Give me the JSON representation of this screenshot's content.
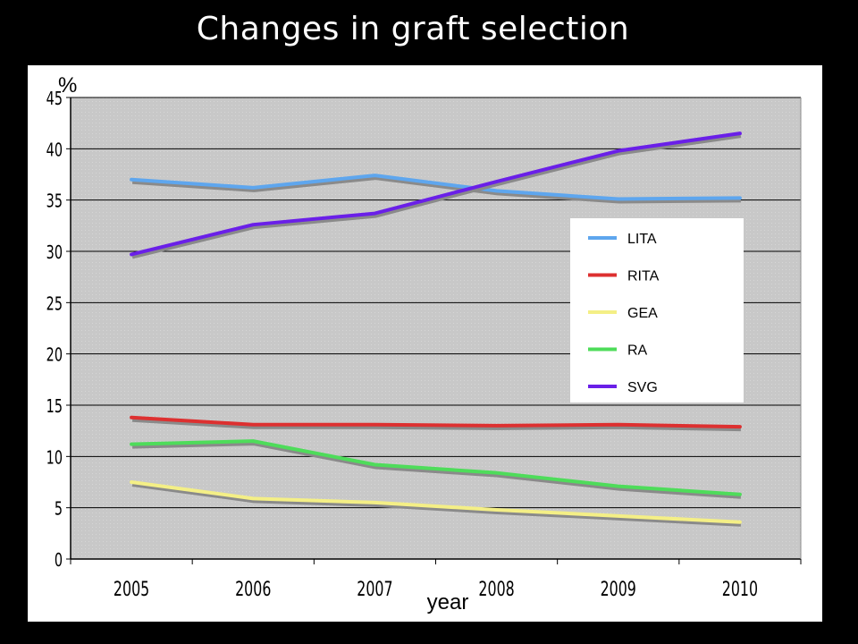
{
  "page": {
    "title": "Changes in graft selection"
  },
  "chart_data": {
    "type": "line",
    "title": "Changes in graft selection",
    "xlabel": "year",
    "ylabel": "%",
    "categories": [
      "2005",
      "2006",
      "2007",
      "2008",
      "2009",
      "2010"
    ],
    "ylim": [
      0,
      45
    ],
    "yticks": [
      "0",
      "5",
      "10",
      "15",
      "20",
      "25",
      "30",
      "35",
      "40",
      "45"
    ],
    "grid": true,
    "legend_position": "right",
    "series": [
      {
        "name": "LITA",
        "color": "#5ea6ee",
        "values": [
          37.0,
          36.2,
          37.4,
          35.9,
          35.1,
          35.2
        ]
      },
      {
        "name": "RITA",
        "color": "#dd3030",
        "values": [
          13.8,
          13.1,
          13.1,
          13.0,
          13.1,
          12.9
        ]
      },
      {
        "name": "GEA",
        "color": "#f4ef86",
        "values": [
          7.5,
          5.9,
          5.5,
          4.8,
          4.2,
          3.6
        ]
      },
      {
        "name": "RA",
        "color": "#4edc5a",
        "values": [
          11.2,
          11.5,
          9.2,
          8.4,
          7.1,
          6.3
        ]
      },
      {
        "name": "SVG",
        "color": "#6a1fe8",
        "values": [
          29.7,
          32.6,
          33.7,
          36.8,
          39.8,
          41.5
        ]
      }
    ]
  }
}
